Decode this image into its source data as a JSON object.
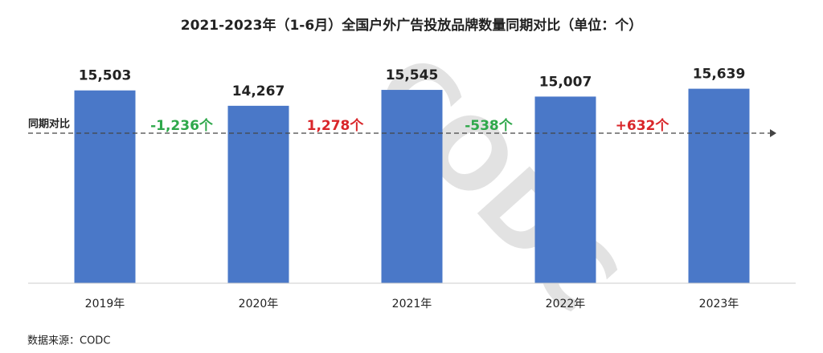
{
  "chart_data": {
    "type": "bar",
    "title": "2021-2023年（1-6月）全国户外广告投放品牌数量同期对比（单位：个）",
    "categories": [
      "2019年",
      "2020年",
      "2021年",
      "2022年",
      "2023年"
    ],
    "values": [
      15503,
      14267,
      15545,
      15007,
      15639
    ],
    "value_labels": [
      "15,503",
      "14,267",
      "15,545",
      "15,007",
      "15,639"
    ],
    "color": "#4a78c8",
    "ylim": [
      0,
      16000
    ],
    "reference_line_label": "同期对比",
    "annotations": [
      {
        "text": "-1,236个",
        "color": "#2ea84a"
      },
      {
        "text": "1,278个",
        "color": "#d9262a"
      },
      {
        "text": "-538个",
        "color": "#2ea84a"
      },
      {
        "text": "+632个",
        "color": "#d9262a"
      }
    ],
    "source": "数据来源：CODC",
    "watermark": "CODC"
  }
}
